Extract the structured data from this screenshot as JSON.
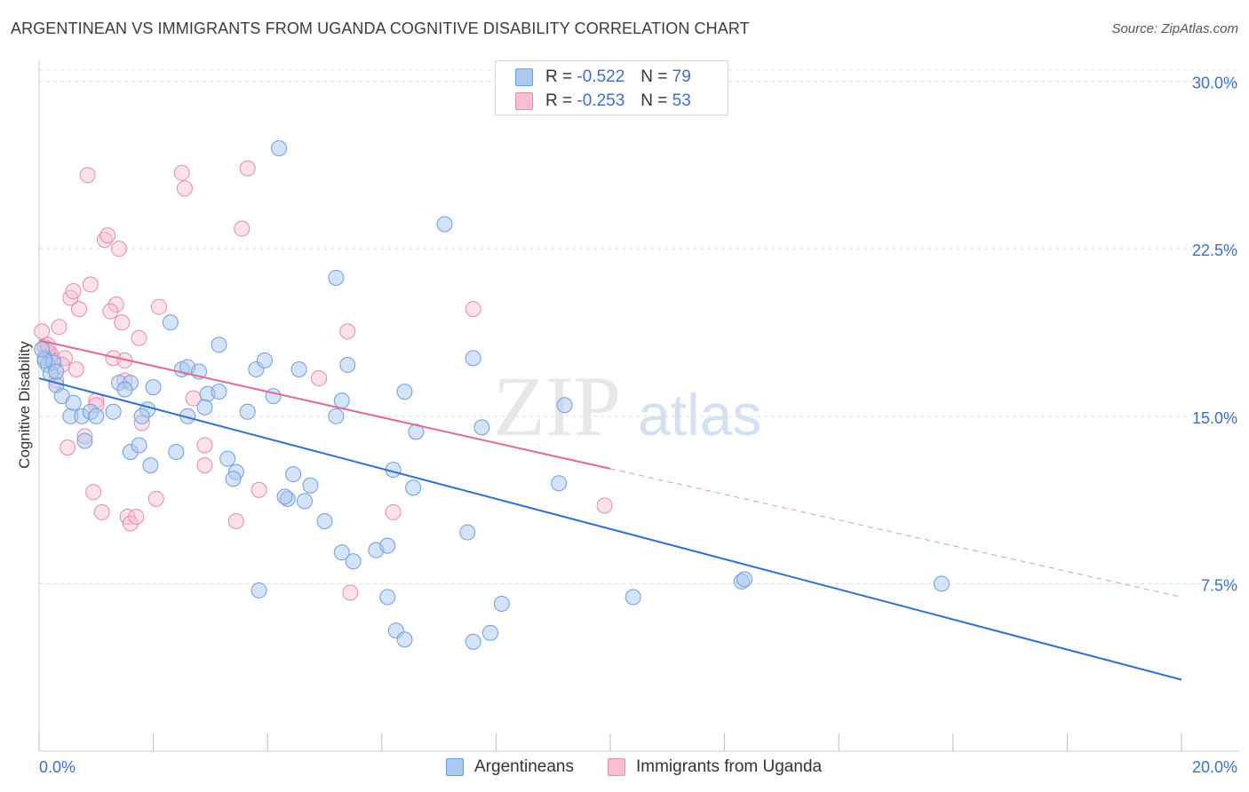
{
  "header": {
    "title": "ARGENTINEAN VS IMMIGRANTS FROM UGANDA COGNITIVE DISABILITY CORRELATION CHART",
    "source": "Source: ZipAtlas.com"
  },
  "watermark": {
    "zip": "ZIP",
    "atlas": "atlas"
  },
  "legend": {
    "rows": [
      {
        "r_label": "R =",
        "r_value": "-0.522",
        "n_label": "N =",
        "n_value": "79"
      },
      {
        "r_label": "R =",
        "r_value": "-0.253",
        "n_label": "N =",
        "n_value": "53"
      }
    ]
  },
  "bottom_legend": {
    "items": [
      {
        "label": "Argentineans"
      },
      {
        "label": "Immigrants from Uganda"
      }
    ]
  },
  "colors": {
    "blue_fill": "#aac8f0",
    "blue_stroke": "#6e9fe0",
    "blue_line": "#2f6fd0",
    "pink_fill": "#f7bfd0",
    "pink_stroke": "#ea8aab",
    "pink_line": "#e06a93",
    "grid": "#dddddd",
    "tick_text": "#3d6fc9"
  },
  "chart_data": {
    "type": "scatter",
    "title": "ARGENTINEAN VS IMMIGRANTS FROM UGANDA COGNITIVE DISABILITY CORRELATION CHART",
    "xlabel": "",
    "ylabel": "Cognitive Disability",
    "xlim": [
      0,
      20
    ],
    "ylim": [
      0,
      30.5
    ],
    "x_tick_labels": [
      "0.0%",
      "20.0%"
    ],
    "y_ticks": [
      7.5,
      15,
      22.5,
      30
    ],
    "y_tick_labels": [
      "7.5%",
      "15.0%",
      "22.5%",
      "30.0%"
    ],
    "grid": true,
    "series": [
      {
        "name": "Argentineans",
        "color": "#aac8f0",
        "trend": {
          "x": [
            0,
            20
          ],
          "y": [
            16.7,
            3.2
          ],
          "dashed_from": null
        },
        "points": [
          [
            0.1,
            17.6
          ],
          [
            0.15,
            17.3
          ],
          [
            0.2,
            16.9
          ],
          [
            0.25,
            17.4
          ],
          [
            0.3,
            16.4
          ],
          [
            0.4,
            15.9
          ],
          [
            0.55,
            15.0
          ],
          [
            0.6,
            15.6
          ],
          [
            0.75,
            15.0
          ],
          [
            0.8,
            13.9
          ],
          [
            0.9,
            15.2
          ],
          [
            1.0,
            15.0
          ],
          [
            1.4,
            16.5
          ],
          [
            1.6,
            16.5
          ],
          [
            1.5,
            16.2
          ],
          [
            1.9,
            15.3
          ],
          [
            1.8,
            15.0
          ],
          [
            1.6,
            13.4
          ],
          [
            1.75,
            13.7
          ],
          [
            1.95,
            12.8
          ],
          [
            2.0,
            16.3
          ],
          [
            2.3,
            19.2
          ],
          [
            2.5,
            17.1
          ],
          [
            2.6,
            17.2
          ],
          [
            2.8,
            17.0
          ],
          [
            2.95,
            16.0
          ],
          [
            3.15,
            16.1
          ],
          [
            2.9,
            15.4
          ],
          [
            2.6,
            15.0
          ],
          [
            3.15,
            18.2
          ],
          [
            2.4,
            13.4
          ],
          [
            3.3,
            13.1
          ],
          [
            3.45,
            12.5
          ],
          [
            3.4,
            12.2
          ],
          [
            3.65,
            15.2
          ],
          [
            3.8,
            17.1
          ],
          [
            3.95,
            17.5
          ],
          [
            4.1,
            15.9
          ],
          [
            4.2,
            27.0
          ],
          [
            4.55,
            17.1
          ],
          [
            4.45,
            12.4
          ],
          [
            4.75,
            11.9
          ],
          [
            4.65,
            11.2
          ],
          [
            4.35,
            11.3
          ],
          [
            4.3,
            11.4
          ],
          [
            5.2,
            21.2
          ],
          [
            5.4,
            17.3
          ],
          [
            5.3,
            15.7
          ],
          [
            5.2,
            15.0
          ],
          [
            5.0,
            10.3
          ],
          [
            5.5,
            8.5
          ],
          [
            5.3,
            8.9
          ],
          [
            5.9,
            9.0
          ],
          [
            6.1,
            9.2
          ],
          [
            6.2,
            12.6
          ],
          [
            6.4,
            16.1
          ],
          [
            6.6,
            14.3
          ],
          [
            6.55,
            11.8
          ],
          [
            7.1,
            23.6
          ],
          [
            7.5,
            9.8
          ],
          [
            7.6,
            17.6
          ],
          [
            7.75,
            14.5
          ],
          [
            7.9,
            5.3
          ],
          [
            8.1,
            6.6
          ],
          [
            9.2,
            15.5
          ],
          [
            9.1,
            12.0
          ],
          [
            3.85,
            7.2
          ],
          [
            6.1,
            6.9
          ],
          [
            6.25,
            5.4
          ],
          [
            6.4,
            5.0
          ],
          [
            7.6,
            4.9
          ],
          [
            10.4,
            6.9
          ],
          [
            12.3,
            7.6
          ],
          [
            12.35,
            7.7
          ],
          [
            15.8,
            7.5
          ],
          [
            0.1,
            17.5
          ],
          [
            0.3,
            17.0
          ],
          [
            1.3,
            15.2
          ],
          [
            0.05,
            18.0
          ]
        ]
      },
      {
        "name": "Immigrants from Uganda",
        "color": "#f7bfd0",
        "trend": {
          "x": [
            0,
            20
          ],
          "y": [
            18.4,
            6.9
          ],
          "solid_until_x": 10.0
        },
        "points": [
          [
            0.05,
            18.8
          ],
          [
            0.1,
            18.1
          ],
          [
            0.2,
            17.8
          ],
          [
            0.25,
            17.5
          ],
          [
            0.3,
            16.6
          ],
          [
            0.35,
            19.0
          ],
          [
            0.45,
            17.6
          ],
          [
            0.5,
            13.6
          ],
          [
            0.55,
            20.3
          ],
          [
            0.7,
            19.8
          ],
          [
            0.65,
            17.1
          ],
          [
            0.8,
            14.1
          ],
          [
            0.9,
            20.9
          ],
          [
            0.85,
            25.8
          ],
          [
            1.0,
            15.7
          ],
          [
            0.95,
            11.6
          ],
          [
            1.1,
            10.7
          ],
          [
            1.15,
            22.9
          ],
          [
            1.2,
            23.1
          ],
          [
            1.3,
            17.6
          ],
          [
            1.35,
            20.0
          ],
          [
            1.4,
            22.5
          ],
          [
            1.45,
            19.2
          ],
          [
            1.5,
            17.5
          ],
          [
            1.5,
            16.6
          ],
          [
            1.55,
            10.5
          ],
          [
            1.6,
            10.2
          ],
          [
            1.7,
            10.5
          ],
          [
            1.75,
            18.5
          ],
          [
            1.8,
            14.7
          ],
          [
            2.1,
            19.9
          ],
          [
            2.5,
            25.9
          ],
          [
            2.55,
            25.2
          ],
          [
            2.7,
            15.8
          ],
          [
            2.9,
            13.7
          ],
          [
            2.9,
            12.8
          ],
          [
            3.45,
            10.3
          ],
          [
            3.55,
            23.4
          ],
          [
            3.65,
            26.1
          ],
          [
            3.85,
            11.7
          ],
          [
            4.9,
            16.7
          ],
          [
            5.4,
            18.8
          ],
          [
            5.45,
            7.1
          ],
          [
            6.2,
            10.7
          ],
          [
            7.6,
            19.8
          ],
          [
            9.9,
            11.0
          ],
          [
            0.6,
            20.6
          ],
          [
            0.15,
            17.9
          ],
          [
            1.0,
            15.5
          ],
          [
            2.05,
            11.3
          ],
          [
            0.4,
            17.3
          ],
          [
            1.25,
            19.7
          ],
          [
            0.15,
            18.2
          ]
        ]
      }
    ]
  }
}
